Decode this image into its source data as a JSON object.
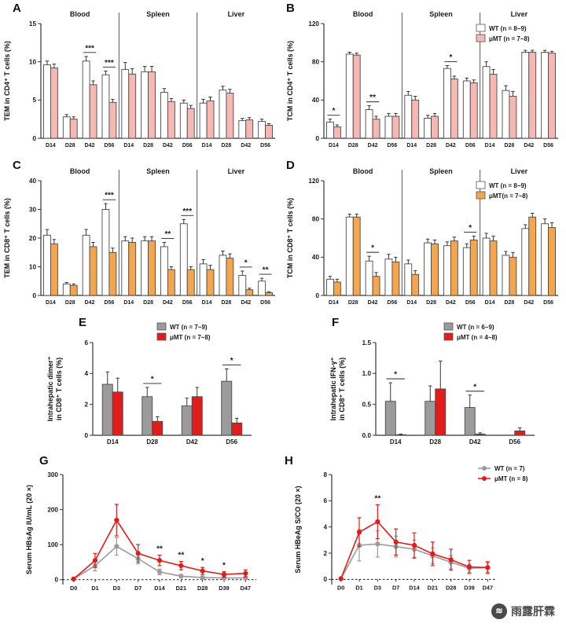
{
  "watermark": {
    "text": "雨露肝霖"
  },
  "chart_data": [
    {
      "panel": "A",
      "type": "bar",
      "ylabel": [
        "TEM in CD4⁺ T cells (%)"
      ],
      "ylim": [
        0,
        15
      ],
      "yticks": [
        0,
        5,
        10,
        15
      ],
      "sections": [
        {
          "label": "Blood",
          "from": 0,
          "to": 3
        },
        {
          "label": "Spleen",
          "from": 4,
          "to": 7
        },
        {
          "label": "Liver",
          "from": 8,
          "to": 11
        }
      ],
      "categories": [
        "D14",
        "D28",
        "D42",
        "D56",
        "D14",
        "D28",
        "D42",
        "D56",
        "D14",
        "D28",
        "D42",
        "D56"
      ],
      "series": [
        {
          "name": "WT",
          "color": "#FFFFFF",
          "values": [
            9.6,
            2.8,
            10.1,
            8.3,
            9.0,
            8.7,
            6.0,
            4.6,
            4.6,
            6.3,
            2.3,
            2.2
          ],
          "errors": [
            0.5,
            0.3,
            0.6,
            0.5,
            0.9,
            0.7,
            0.5,
            0.4,
            0.5,
            0.5,
            0.3,
            0.3
          ]
        },
        {
          "name": "μMT",
          "color": "#F5B8B2",
          "values": [
            9.2,
            2.5,
            7.0,
            4.7,
            8.4,
            8.7,
            4.8,
            3.9,
            4.9,
            5.9,
            2.4,
            1.7
          ],
          "errors": [
            0.5,
            0.3,
            0.5,
            0.4,
            0.7,
            0.7,
            0.4,
            0.4,
            0.5,
            0.5,
            0.3,
            0.2
          ]
        }
      ],
      "sig": [
        {
          "i": 2,
          "label": "***"
        },
        {
          "i": 3,
          "label": "***"
        }
      ]
    },
    {
      "panel": "B",
      "type": "bar",
      "ylabel": [
        "TCM in CD4⁺ T cells (%)"
      ],
      "ylim": [
        0,
        120
      ],
      "yticks": [
        0,
        40,
        80,
        120
      ],
      "sections": [
        {
          "label": "Blood",
          "from": 0,
          "to": 3
        },
        {
          "label": "Spleen",
          "from": 4,
          "to": 7
        },
        {
          "label": "Liver",
          "from": 8,
          "to": 11
        }
      ],
      "categories": [
        "D14",
        "D28",
        "D42",
        "D56",
        "D14",
        "D28",
        "D42",
        "D56",
        "D14",
        "D28",
        "D42",
        "D56"
      ],
      "series": [
        {
          "name": "WT",
          "color": "#FFFFFF",
          "values": [
            17,
            88,
            30,
            23,
            45,
            21,
            73,
            60,
            75,
            50,
            90,
            90
          ],
          "errors": [
            3,
            2,
            4,
            3,
            4,
            3,
            3,
            3,
            5,
            5,
            2,
            2
          ]
        },
        {
          "name": "μMT",
          "color": "#F5B8B2",
          "values": [
            12,
            87,
            20,
            23,
            40,
            23,
            62,
            58,
            67,
            44,
            90,
            89
          ],
          "errors": [
            2,
            2,
            3,
            3,
            4,
            3,
            3,
            3,
            5,
            5,
            2,
            2
          ]
        }
      ],
      "sig": [
        {
          "i": 0,
          "label": "*"
        },
        {
          "i": 2,
          "label": "**"
        },
        {
          "i": 6,
          "label": "*"
        }
      ],
      "legend": {
        "items": [
          "WT (n = 8~9)",
          "μMT (n = 7~8)"
        ],
        "pos": "top-right"
      }
    },
    {
      "panel": "C",
      "type": "bar",
      "ylabel": [
        "TEM in CD8⁺ T cells (%)"
      ],
      "ylim": [
        0,
        40
      ],
      "yticks": [
        0,
        10,
        20,
        30,
        40
      ],
      "sections": [
        {
          "label": "Blood",
          "from": 0,
          "to": 3
        },
        {
          "label": "Spleen",
          "from": 4,
          "to": 7
        },
        {
          "label": "Liver",
          "from": 8,
          "to": 11
        }
      ],
      "categories": [
        "D14",
        "D28",
        "D42",
        "D56",
        "D14",
        "D28",
        "D42",
        "D56",
        "D14",
        "D28",
        "D42",
        "D56"
      ],
      "series": [
        {
          "name": "WT",
          "color": "#FFFFFF",
          "values": [
            21,
            4,
            21,
            30,
            19,
            19,
            17,
            25,
            11,
            14,
            7,
            5
          ],
          "errors": [
            2,
            0.5,
            2,
            2,
            1.5,
            1.5,
            1.5,
            1.5,
            1.5,
            1.5,
            1.5,
            1
          ]
        },
        {
          "name": "μMT",
          "color": "#F4A64F",
          "values": [
            18,
            3.5,
            17,
            15,
            18.5,
            19,
            9,
            9,
            9,
            13,
            2,
            1
          ],
          "errors": [
            1.5,
            0.5,
            1.5,
            1.5,
            1.5,
            1.5,
            1,
            1,
            1.5,
            1.5,
            0.5,
            0.3
          ]
        }
      ],
      "sig": [
        {
          "i": 3,
          "label": "***"
        },
        {
          "i": 6,
          "label": "**"
        },
        {
          "i": 7,
          "label": "***"
        },
        {
          "i": 10,
          "label": "*"
        },
        {
          "i": 11,
          "label": "**"
        }
      ]
    },
    {
      "panel": "D",
      "type": "bar",
      "ylabel": [
        "TCM in CD8⁺ T cells (%)"
      ],
      "ylim": [
        0,
        120
      ],
      "yticks": [
        0,
        40,
        80,
        120
      ],
      "sections": [
        {
          "label": "Blood",
          "from": 0,
          "to": 3
        },
        {
          "label": "Spleen",
          "from": 4,
          "to": 7
        },
        {
          "label": "Liver",
          "from": 8,
          "to": 11
        }
      ],
      "categories": [
        "D14",
        "D28",
        "D42",
        "D56",
        "D14",
        "D28",
        "D42",
        "D56",
        "D14",
        "D28",
        "D42",
        "D56"
      ],
      "series": [
        {
          "name": "WT",
          "color": "#FFFFFF",
          "values": [
            17,
            82,
            36,
            38,
            33,
            55,
            52,
            50,
            60,
            42,
            70,
            75
          ],
          "errors": [
            3,
            3,
            5,
            5,
            4,
            4,
            4,
            4,
            5,
            4,
            4,
            5
          ]
        },
        {
          "name": "μMT",
          "color": "#F4A64F",
          "values": [
            14,
            82,
            20,
            35,
            22,
            54,
            57,
            58,
            57,
            40,
            82,
            71
          ],
          "errors": [
            3,
            3,
            4,
            5,
            4,
            4,
            4,
            4,
            5,
            5,
            4,
            5
          ]
        }
      ],
      "sig": [
        {
          "i": 2,
          "label": "*"
        },
        {
          "i": 7,
          "label": "*"
        }
      ],
      "legend": {
        "items": [
          "WT (n = 8~9)",
          "μMT(n = 7~8)"
        ],
        "pos": "top-right"
      }
    },
    {
      "panel": "E",
      "type": "bar",
      "ylabel": [
        "Intrahepatic dimer⁺",
        "in CD8⁺ T cells (%)"
      ],
      "ylim": [
        0,
        6
      ],
      "yticks": [
        0,
        2,
        4,
        6
      ],
      "categories": [
        "D14",
        "D28",
        "D42",
        "D56"
      ],
      "series": [
        {
          "name": "WT",
          "color": "#9B9B9B",
          "values": [
            3.3,
            2.5,
            1.9,
            3.5
          ],
          "errors": [
            0.8,
            0.6,
            0.5,
            0.8
          ]
        },
        {
          "name": "μMT",
          "color": "#E21B1B",
          "values": [
            2.8,
            0.9,
            2.5,
            0.8
          ],
          "errors": [
            0.9,
            0.3,
            0.6,
            0.3
          ]
        }
      ],
      "sig": [
        {
          "i": 1,
          "label": "*"
        },
        {
          "i": 3,
          "label": "*"
        }
      ],
      "legend": {
        "items": [
          "WT  (n = 7~9)",
          "μMT (n = 7~8)"
        ],
        "pos": "top-right"
      }
    },
    {
      "panel": "F",
      "type": "bar",
      "ylabel": [
        "Intrahepatic IFN-γ⁺",
        "in CD8⁺ T cells (%)"
      ],
      "ylim": [
        0,
        1.5
      ],
      "yticks": [
        0,
        0.5,
        1,
        1.5
      ],
      "ytick_labels": [
        "0.0",
        "0.5",
        "1.0",
        "1.5"
      ],
      "categories": [
        "D14",
        "D28",
        "D42",
        "D56"
      ],
      "series": [
        {
          "name": "WT",
          "color": "#9B9B9B",
          "values": [
            0.55,
            0.55,
            0.45,
            0
          ],
          "errors": [
            0.3,
            0.25,
            0.2,
            0
          ]
        },
        {
          "name": "μMT",
          "color": "#E21B1B",
          "values": [
            0.01,
            0.75,
            0.02,
            0.07
          ],
          "errors": [
            0.01,
            0.45,
            0.02,
            0.05
          ]
        }
      ],
      "sig": [
        {
          "i": 0,
          "label": "*"
        },
        {
          "i": 2,
          "label": "*"
        }
      ],
      "legend": {
        "items": [
          "WT  (n = 6~9)",
          "μMT (n = 4~8)"
        ],
        "pos": "top-right"
      }
    },
    {
      "panel": "G",
      "type": "line",
      "ylabel": [
        "Serum HBsAg IU/mL (20 ×)"
      ],
      "ylim": [
        -14,
        300
      ],
      "yticks": [
        0,
        100,
        200,
        300
      ],
      "zero_line": true,
      "categories": [
        "D0",
        "D1",
        "D3",
        "D7",
        "D14",
        "D21",
        "D28",
        "D39",
        "D47"
      ],
      "series": [
        {
          "name": "WT",
          "color": "#9B9B9B",
          "values": [
            2,
            40,
            95,
            60,
            22,
            10,
            6,
            5,
            5
          ],
          "errors": [
            2,
            15,
            25,
            15,
            8,
            5,
            3,
            2,
            2
          ]
        },
        {
          "name": "μMT",
          "color": "#E21B1B",
          "values": [
            2,
            55,
            170,
            75,
            55,
            40,
            25,
            15,
            18
          ],
          "errors": [
            2,
            20,
            45,
            25,
            15,
            12,
            10,
            8,
            10
          ]
        }
      ],
      "sig": [
        {
          "i": 4,
          "label": "**"
        },
        {
          "i": 5,
          "label": "**"
        },
        {
          "i": 6,
          "label": "*"
        },
        {
          "i": 7,
          "label": "*"
        }
      ]
    },
    {
      "panel": "H",
      "type": "line",
      "ylabel": [
        "Serum HBeAg S/CO (20 ×)"
      ],
      "ylim": [
        -0.4,
        8
      ],
      "yticks": [
        0,
        2,
        4,
        6,
        8
      ],
      "zero_line": true,
      "categories": [
        "D0",
        "D1",
        "D3",
        "D7",
        "D14",
        "D21",
        "D28",
        "D39",
        "D47"
      ],
      "series": [
        {
          "name": "WT",
          "color": "#9B9B9B",
          "values": [
            0.05,
            2.6,
            2.7,
            2.5,
            2.3,
            1.8,
            1.3,
            0.85,
            0.9
          ],
          "errors": [
            0.03,
            1.2,
            1.0,
            0.8,
            0.7,
            0.6,
            0.5,
            0.3,
            0.35
          ]
        },
        {
          "name": "μMT",
          "color": "#E21B1B",
          "values": [
            0.05,
            3.6,
            4.4,
            2.85,
            2.6,
            1.95,
            1.5,
            0.95,
            0.9
          ],
          "errors": [
            0.03,
            1.1,
            1.3,
            1.0,
            0.95,
            0.9,
            0.8,
            0.5,
            0.45
          ]
        }
      ],
      "sig": [
        {
          "i": 2,
          "label": "**"
        }
      ],
      "legend": {
        "items": [
          "WT  (n = 7)",
          "μMT (n = 8)"
        ],
        "pos": "top-right"
      }
    }
  ]
}
